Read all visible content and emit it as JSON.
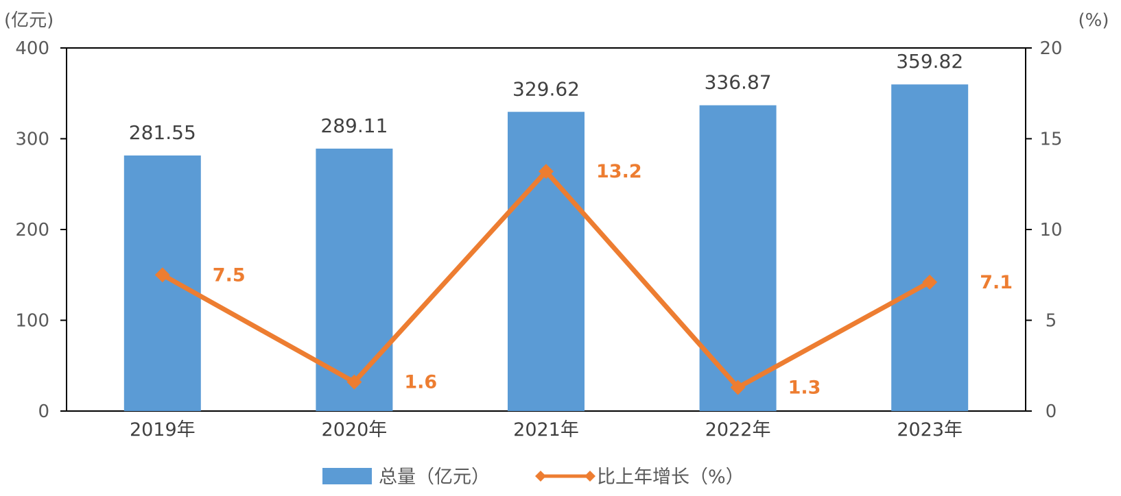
{
  "chart_data": {
    "type": "bar",
    "categories": [
      "2019年",
      "2020年",
      "2021年",
      "2022年",
      "2023年"
    ],
    "series": [
      {
        "name": "总量（亿元）",
        "type": "bar",
        "axis": "left",
        "color": "#5B9BD5",
        "values": [
          281.55,
          289.11,
          329.62,
          336.87,
          359.82
        ],
        "labels": [
          "281.55",
          "289.11",
          "329.62",
          "336.87",
          "359.82"
        ]
      },
      {
        "name": "比上年增长（%）",
        "type": "line",
        "axis": "right",
        "color": "#ED7D31",
        "values": [
          7.5,
          1.6,
          13.2,
          1.3,
          7.1
        ],
        "labels": [
          "7.5",
          "1.6",
          "13.2",
          "1.3",
          "7.1"
        ]
      }
    ],
    "y_left": {
      "unit": "(亿元)",
      "min": 0,
      "max": 400,
      "ticks": [
        0,
        100,
        200,
        300,
        400
      ]
    },
    "y_right": {
      "unit": "(%)",
      "min": 0,
      "max": 20,
      "ticks": [
        0,
        5,
        10,
        15,
        20
      ]
    },
    "grid": false,
    "legend": "bottom-center"
  }
}
